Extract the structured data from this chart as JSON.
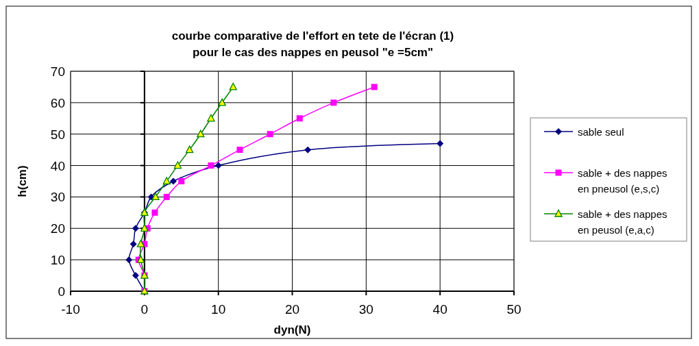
{
  "chart_data": {
    "type": "line",
    "title": "courbe comparative de l'effort en tete de l'écran (1)\npour le cas des nappes en peusol \"e =5cm\"",
    "xlabel": "dyn(N)",
    "ylabel": "h(cm)",
    "xlim": [
      -10,
      50
    ],
    "xticks": [
      -10,
      0,
      10,
      20,
      30,
      40,
      50
    ],
    "ylim": [
      0,
      70
    ],
    "yticks": [
      0,
      10,
      20,
      30,
      40,
      50,
      60,
      70
    ],
    "grid": true,
    "legend": "right",
    "series": [
      {
        "name": "sable seul",
        "color": "#000080",
        "marker": "diamond",
        "x": [
          0,
          -1.2,
          -2.1,
          -1.5,
          -1.2,
          0,
          0.9,
          3.9,
          10,
          22.1,
          40
        ],
        "values": [
          0,
          5,
          10,
          15,
          20,
          25,
          30,
          35,
          40,
          45,
          47
        ]
      },
      {
        "name": "sable + des nappes en pneusol (e,s,c)",
        "color": "#ff00ff",
        "marker": "square",
        "x": [
          0,
          0,
          -0.8,
          0,
          0.4,
          1.4,
          3.0,
          5.0,
          9.0,
          12.9,
          17.0,
          21.0,
          25.6,
          31.1
        ],
        "values": [
          0,
          5,
          10,
          15,
          20,
          25,
          30,
          35,
          40,
          45,
          50,
          55,
          60,
          65
        ]
      },
      {
        "name": "sable + des nappes en peusol (e,a,c)",
        "color": "#008000",
        "marker": "triangle",
        "x": [
          0,
          0,
          -0.5,
          -0.5,
          0,
          0,
          1.5,
          3.0,
          4.5,
          6.1,
          7.6,
          9.0,
          10.5,
          12.0
        ],
        "values": [
          0,
          5,
          10,
          15,
          20,
          25,
          30,
          35,
          40,
          45,
          50,
          55,
          60,
          65
        ]
      }
    ]
  }
}
